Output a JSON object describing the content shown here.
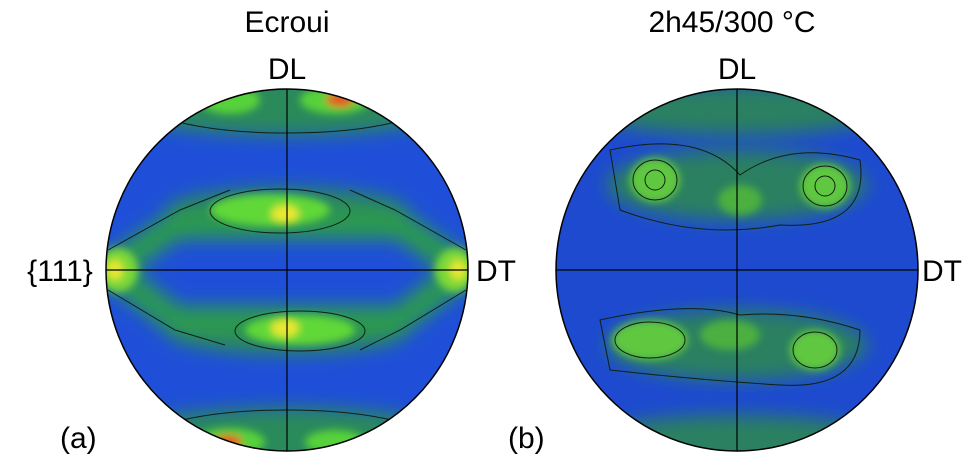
{
  "panels": [
    {
      "title": "Ecroui",
      "top_label": "DL",
      "left_label": "{111}",
      "right_label": "DT",
      "panel_label": "(a)"
    },
    {
      "title": "2h45/300 °C",
      "top_label": "DL",
      "right_label": "DT",
      "panel_label": "(b)"
    }
  ]
}
